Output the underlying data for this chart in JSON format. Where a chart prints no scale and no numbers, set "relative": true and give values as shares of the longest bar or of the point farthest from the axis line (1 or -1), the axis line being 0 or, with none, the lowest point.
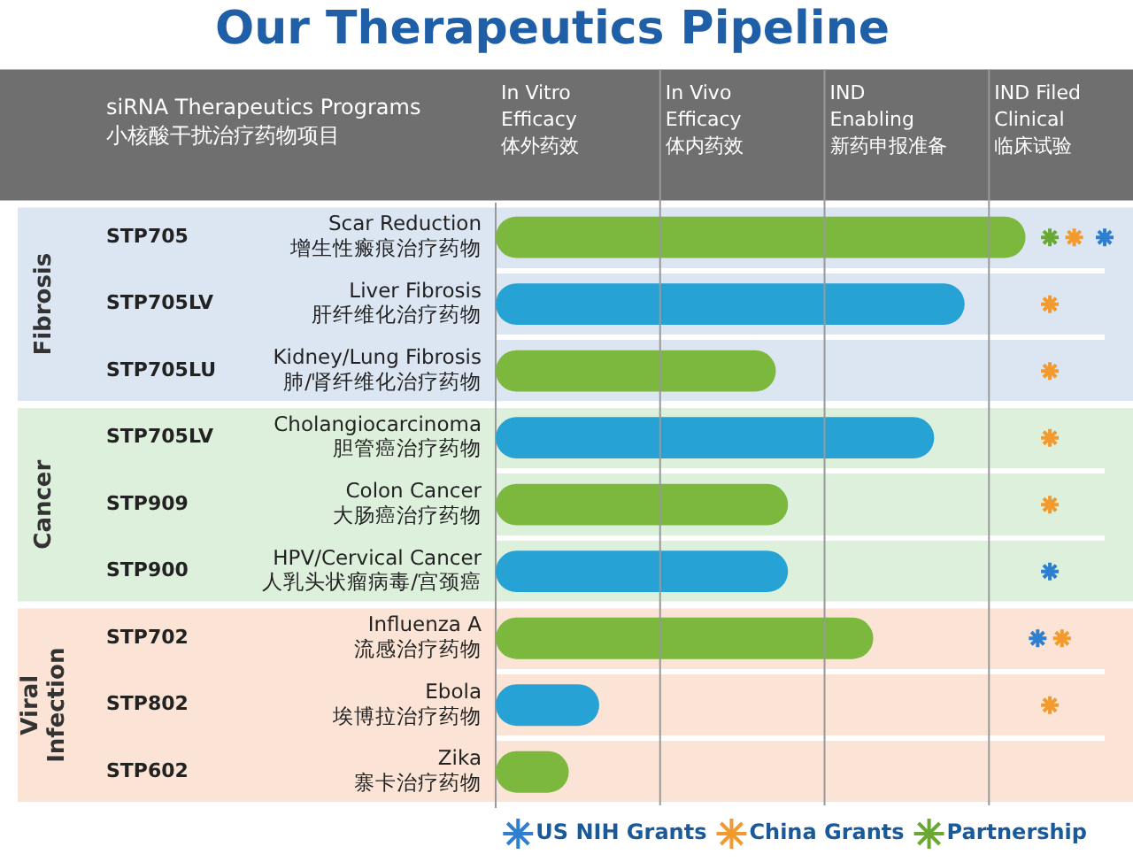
{
  "chart_data": {
    "type": "bar",
    "orientation": "horizontal",
    "relative": true,
    "title": "Our Therapeutics Pipeline",
    "ylabel": "siRNA Therapeutics Programs\n小核酸干扰治疗药物项目",
    "categories": [
      "Scar Reduction\n增生性瘢痕治疗药物",
      "Liver Fibrosis\n肝纤维化治疗药物",
      "Kidney/Lung Fibrosis\n肺/肾纤维化治疗药物",
      "Cholangiocarcinoma\n胆管癌治疗药物",
      "Colon Cancer\n大肠癌治疗药物",
      "HPV/Cervical Cancer\n人乳头状瘤病毒/宫颈癌",
      "Influenza A\n流感治疗药物",
      "Ebola\n埃博拉治疗药物",
      "Zika\n寨卡治疗药物"
    ],
    "values": [
      0.87,
      0.77,
      0.46,
      0.72,
      0.48,
      0.48,
      0.62,
      0.17,
      0.12
    ],
    "colors": [
      "#7cb83e",
      "#26a3d4",
      "#7cb83e",
      "#26a3d4",
      "#7cb83e",
      "#26a3d4",
      "#7cb83e",
      "#26a3d4",
      "#7cb83e"
    ],
    "series": [
      {
        "type": "scatter",
        "name": "US NIH Grants",
        "color": "#2e7fd0",
        "values": [
          1,
          null,
          null,
          null,
          null,
          0.91,
          0.89,
          null,
          null
        ]
      },
      {
        "type": "scatter",
        "name": "China Grants",
        "color": "#f29a2e",
        "values": [
          0.95,
          0.91,
          0.91,
          0.91,
          0.91,
          null,
          0.93,
          0.91,
          null
        ]
      },
      {
        "type": "scatter",
        "name": "Partnership",
        "color": "#6aa832",
        "values": [
          0.91,
          null,
          null,
          null,
          null,
          null,
          null,
          null,
          null
        ]
      }
    ],
    "marker": "cross",
    "bands": [
      {
        "axis": "y",
        "from": "Scar Reduction\n增生性瘢痕治疗药物",
        "to": "Kidney/Lung Fibrosis\n肺/肾纤维化治疗药物",
        "label": "Fibrosis",
        "color": "#dce6f2"
      },
      {
        "axis": "y",
        "from": "Cholangiocarcinoma\n胆管癌治疗药物",
        "to": "HPV/Cervical Cancer\n人乳头状瘤病毒/宫颈癌",
        "label": "Cancer",
        "color": "#ddf0dc"
      },
      {
        "axis": "y",
        "from": "Influenza A\n流感治疗药物",
        "to": "Zika\n寨卡治疗药物",
        "label": "Viral\nInfection",
        "color": "#fbe4d5"
      }
    ],
    "annotations": [
      "STP705",
      "STP705LV",
      "STP705LU",
      "STP705LV",
      "STP909",
      "STP900",
      "STP702",
      "STP802",
      "STP602",
      "In Vitro\nEfficacy\n体外药效",
      "In Vivo\nEfficacy\n体内药效",
      "IND\nEnabling\n新药申报准备",
      "IND Filed\nClinical\n临床试验"
    ],
    "grid": "y",
    "legend": "bottom right"
  }
}
